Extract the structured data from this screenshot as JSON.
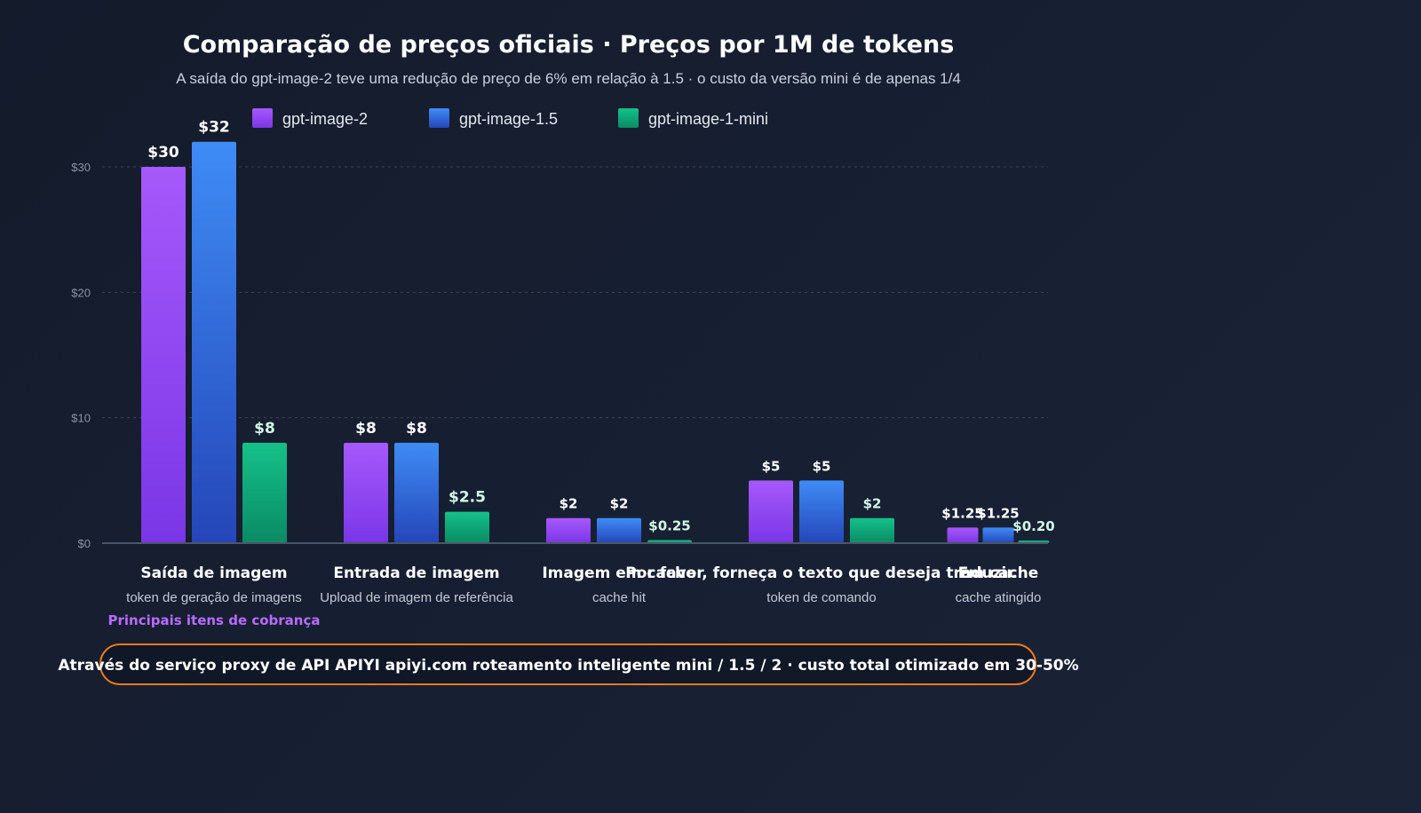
{
  "chart_data": {
    "type": "bar",
    "title": "Comparação de preços oficiais · Preços por 1M de tokens",
    "subtitle": "A saída do gpt-image-2 teve uma redução de preço de 6% em relação à 1.5 · o custo da versão mini é de apenas 1/4",
    "categories": [
      "Saída de imagem",
      "Entrada de imagem",
      "Imagem em cache",
      "Por favor, forneça o texto que deseja traduzir.",
      "Em cache"
    ],
    "category_sublabels": [
      "token de geração de imagens",
      "Upload de imagem de referência",
      "cache hit",
      "token de comando",
      "cache atingido"
    ],
    "highlight_note": "Principais itens de cobrança",
    "series": [
      {
        "name": "gpt-image-2",
        "values": [
          30,
          8,
          2,
          5,
          1.25
        ],
        "labels": [
          "$30",
          "$8",
          "$2",
          "$5",
          "$1.25"
        ],
        "color": "#9b4cf5"
      },
      {
        "name": "gpt-image-1.5",
        "values": [
          32,
          8,
          2,
          5,
          1.25
        ],
        "labels": [
          "$32",
          "$8",
          "$2",
          "$5",
          "$1.25"
        ],
        "color": "#3b7ff0"
      },
      {
        "name": "gpt-image-1-mini",
        "values": [
          8,
          2.5,
          0.25,
          2,
          0.2
        ],
        "labels": [
          "$8",
          "$2.5",
          "$0.25",
          "$2",
          "$0.20"
        ],
        "color": "#12b07f"
      }
    ],
    "yticks": [
      "$0",
      "$10",
      "$20",
      "$30"
    ],
    "ytick_values": [
      0,
      10,
      20,
      30
    ],
    "ylim": [
      0,
      33
    ],
    "grid": true,
    "legend_position": "top"
  },
  "footer": "Através do serviço proxy de API APIYI apiyi.com roteamento inteligente mini / 1.5 / 2 · custo total otimizado em 30-50%",
  "colors": {
    "footer_border": "#f07a1e",
    "highlight": "#b66cff"
  }
}
